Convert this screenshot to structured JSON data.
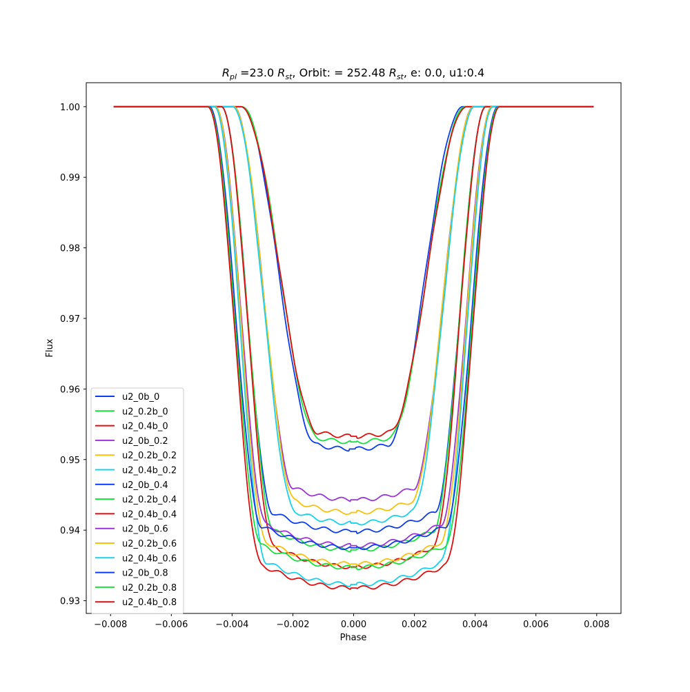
{
  "chart_data": {
    "type": "line",
    "title": {
      "r_pl_base": "R",
      "r_pl_sub": "pl",
      "mid1": " =23.0 ",
      "r_st_base": "R",
      "r_st_sub": "st",
      "mid2": ", Orbit: = 252.48 ",
      "r_st2_base": "R",
      "r_st2_sub": "st",
      "tail": ", e: 0.0, u1:0.4"
    },
    "xlabel": "Phase",
    "ylabel": "Flux",
    "xlim": [
      -0.0088,
      0.0088
    ],
    "ylim": [
      0.9282,
      1.0034
    ],
    "xticks": [
      -0.008,
      -0.006,
      -0.004,
      -0.002,
      0.0,
      0.002,
      0.004,
      0.006,
      0.008
    ],
    "xtick_labels": [
      "−0.008",
      "−0.006",
      "−0.004",
      "−0.002",
      "0.000",
      "0.002",
      "0.004",
      "0.006",
      "0.008"
    ],
    "yticks": [
      0.93,
      0.94,
      0.95,
      0.96,
      0.97,
      0.98,
      0.99,
      1.0
    ],
    "ytick_labels": [
      "0.93",
      "0.94",
      "0.95",
      "0.96",
      "0.97",
      "0.98",
      "0.99",
      "1.00"
    ],
    "grid": false,
    "legend_position": "lower-left",
    "x_range": [
      -0.0079,
      0.0079
    ],
    "series": [
      {
        "name": "u2_0b_0",
        "color": "#0a3bf2",
        "depth": 0.9515,
        "t14": 0.00365,
        "t23": 0.00115,
        "center": -5e-05
      },
      {
        "name": "u2_0.2b_0",
        "color": "#14e33c",
        "depth": 0.9525,
        "t14": 0.00368,
        "t23": 0.00115,
        "center": 0.0
      },
      {
        "name": "u2_0.4b_0",
        "color": "#e00d0d",
        "depth": 0.9533,
        "t14": 0.00372,
        "t23": 0.00115,
        "center": 0.0
      },
      {
        "name": "u2_0b_0.2",
        "color": "#9a34d9",
        "depth": 0.9443,
        "t14": 0.00395,
        "t23": 0.00195,
        "center": 0.0
      },
      {
        "name": "u2_0.2b_0.2",
        "color": "#f8c10b",
        "depth": 0.9425,
        "t14": 0.00395,
        "t23": 0.0019,
        "center": 0.0
      },
      {
        "name": "u2_0.4b_0.2",
        "color": "#16d2ee",
        "depth": 0.941,
        "t14": 0.00398,
        "t23": 0.0019,
        "center": 0.0
      },
      {
        "name": "u2_0b_0.4",
        "color": "#0a3bf2",
        "depth": 0.9398,
        "t14": 0.00435,
        "t23": 0.00265,
        "center": 0.0
      },
      {
        "name": "u2_0.2b_0.4",
        "color": "#14e33c",
        "depth": 0.9372,
        "t14": 0.00435,
        "t23": 0.0026,
        "center": 0.0
      },
      {
        "name": "u2_0.4b_0.4",
        "color": "#e00d0d",
        "depth": 0.9348,
        "t14": 0.00435,
        "t23": 0.0026,
        "center": 0.0
      },
      {
        "name": "u2_0b_0.6",
        "color": "#9a34d9",
        "depth": 0.9378,
        "t14": 0.00455,
        "t23": 0.00285,
        "center": 0.0
      },
      {
        "name": "u2_0.2b_0.6",
        "color": "#f8c10b",
        "depth": 0.9352,
        "t14": 0.00455,
        "t23": 0.00285,
        "center": 0.0
      },
      {
        "name": "u2_0.4b_0.6",
        "color": "#16d2ee",
        "depth": 0.9323,
        "t14": 0.00458,
        "t23": 0.00285,
        "center": 0.0
      },
      {
        "name": "u2_0b_0.8",
        "color": "#0a3bf2",
        "depth": 0.9375,
        "t14": 0.00475,
        "t23": 0.003,
        "center": 0.0
      },
      {
        "name": "u2_0.2b_0.8",
        "color": "#14e33c",
        "depth": 0.9347,
        "t14": 0.00478,
        "t23": 0.003,
        "center": 0.0
      },
      {
        "name": "u2_0.4b_0.8",
        "color": "#e00d0d",
        "depth": 0.9318,
        "t14": 0.0048,
        "t23": 0.003,
        "center": 0.0
      }
    ]
  }
}
